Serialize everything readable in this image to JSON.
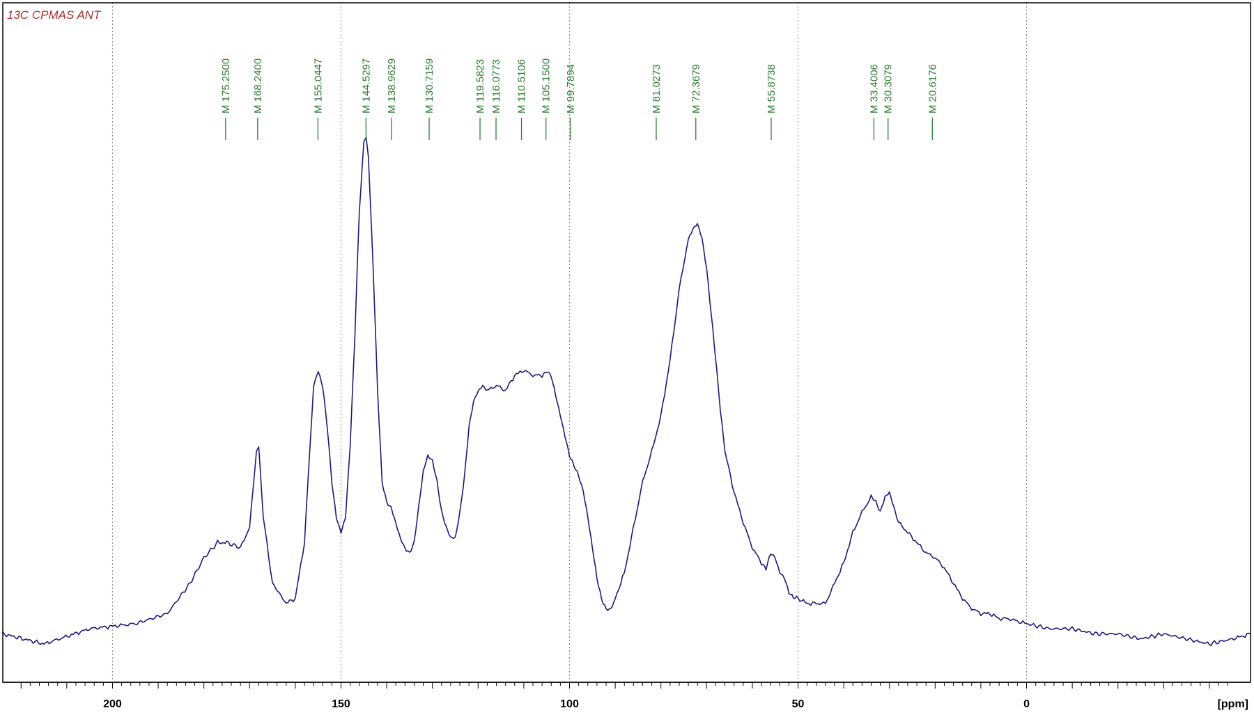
{
  "chart_data": {
    "type": "line",
    "title": "13C CPMAS ANT",
    "xlabel": "[ppm]",
    "ylabel": "",
    "xlim": [
      224,
      -49
    ],
    "xaxis_reversed": true,
    "ylim": [
      0,
      1
    ],
    "grid": "vertical dotted",
    "xticks": [
      "200",
      "150",
      "100",
      "50",
      "0"
    ],
    "colors": {
      "spectrum": "#1a1a7a",
      "peak_labels": "#2e7d32",
      "title": "#b03030",
      "frame": "#000000"
    },
    "peak_markers": [
      "M 175.2500",
      "M 168.2400",
      "M 155.0447",
      "M 144.5297",
      "M 138.9629",
      "M 130.7159",
      "M 119.5823",
      "M 116.0773",
      "M 110.5106",
      "M 105.1500",
      "M 99.7894",
      "M 81.0273",
      "M 72.3679",
      "M 55.8738",
      "M 33.4006",
      "M 30.3079",
      "M 20.6176"
    ],
    "peak_positions_ppm": [
      175.25,
      168.24,
      155.0447,
      144.5297,
      138.9629,
      130.7159,
      119.5823,
      116.0773,
      110.5106,
      105.15,
      99.7894,
      81.0273,
      72.3679,
      55.8738,
      33.4006,
      30.3079,
      20.6176
    ],
    "series": [
      {
        "x": [
          224,
          215,
          205,
          195,
          188,
          183,
          180,
          177,
          175,
          172,
          170,
          168.5,
          168,
          167,
          165,
          162,
          160,
          158,
          156,
          155,
          154,
          153,
          152,
          151,
          150,
          149,
          148,
          147,
          146,
          145,
          144.5,
          144,
          143,
          142,
          141,
          140,
          139,
          138,
          137,
          136,
          135,
          134,
          133,
          132,
          131,
          130,
          129,
          128,
          127,
          126,
          125,
          124,
          123,
          122,
          121,
          120,
          119,
          118,
          116,
          114,
          112,
          110,
          108,
          106,
          105,
          104,
          103,
          102,
          101,
          100,
          99,
          98,
          97,
          96,
          95,
          94,
          93,
          92,
          91,
          90,
          88,
          86,
          84,
          82,
          80,
          78,
          76,
          74,
          73,
          72,
          71,
          70,
          69,
          68,
          67,
          66,
          64,
          62,
          60,
          58,
          57,
          56,
          55,
          54,
          53,
          52,
          51,
          50,
          48,
          46,
          44,
          42,
          40,
          38,
          36,
          34,
          33,
          32,
          31,
          30,
          29,
          28,
          26,
          24,
          22,
          20,
          18,
          16,
          14,
          12,
          10,
          8,
          6,
          4,
          2,
          0,
          -5,
          -10,
          -15,
          -20,
          -25,
          -30,
          -35,
          -40,
          -45,
          -49
        ],
        "y": [
          0.02,
          0.0,
          0.03,
          0.04,
          0.06,
          0.12,
          0.17,
          0.2,
          0.2,
          0.19,
          0.23,
          0.38,
          0.39,
          0.25,
          0.12,
          0.08,
          0.09,
          0.2,
          0.51,
          0.54,
          0.51,
          0.43,
          0.32,
          0.25,
          0.22,
          0.25,
          0.39,
          0.6,
          0.85,
          0.99,
          1.0,
          0.96,
          0.75,
          0.5,
          0.32,
          0.28,
          0.27,
          0.24,
          0.21,
          0.19,
          0.18,
          0.2,
          0.27,
          0.34,
          0.37,
          0.36,
          0.32,
          0.26,
          0.23,
          0.21,
          0.21,
          0.26,
          0.33,
          0.43,
          0.48,
          0.5,
          0.51,
          0.5,
          0.51,
          0.5,
          0.53,
          0.54,
          0.53,
          0.53,
          0.54,
          0.53,
          0.49,
          0.45,
          0.41,
          0.37,
          0.35,
          0.33,
          0.3,
          0.25,
          0.19,
          0.13,
          0.09,
          0.07,
          0.07,
          0.09,
          0.14,
          0.23,
          0.32,
          0.38,
          0.45,
          0.56,
          0.7,
          0.8,
          0.82,
          0.83,
          0.8,
          0.74,
          0.65,
          0.56,
          0.46,
          0.38,
          0.3,
          0.24,
          0.19,
          0.16,
          0.15,
          0.18,
          0.17,
          0.14,
          0.13,
          0.1,
          0.09,
          0.09,
          0.08,
          0.08,
          0.08,
          0.12,
          0.16,
          0.22,
          0.26,
          0.29,
          0.28,
          0.26,
          0.29,
          0.3,
          0.27,
          0.24,
          0.22,
          0.2,
          0.18,
          0.17,
          0.15,
          0.12,
          0.09,
          0.07,
          0.06,
          0.06,
          0.05,
          0.05,
          0.045,
          0.04,
          0.03,
          0.03,
          0.02,
          0.02,
          0.01,
          0.02,
          0.01,
          0.0,
          0.01,
          0.02
        ]
      }
    ]
  }
}
